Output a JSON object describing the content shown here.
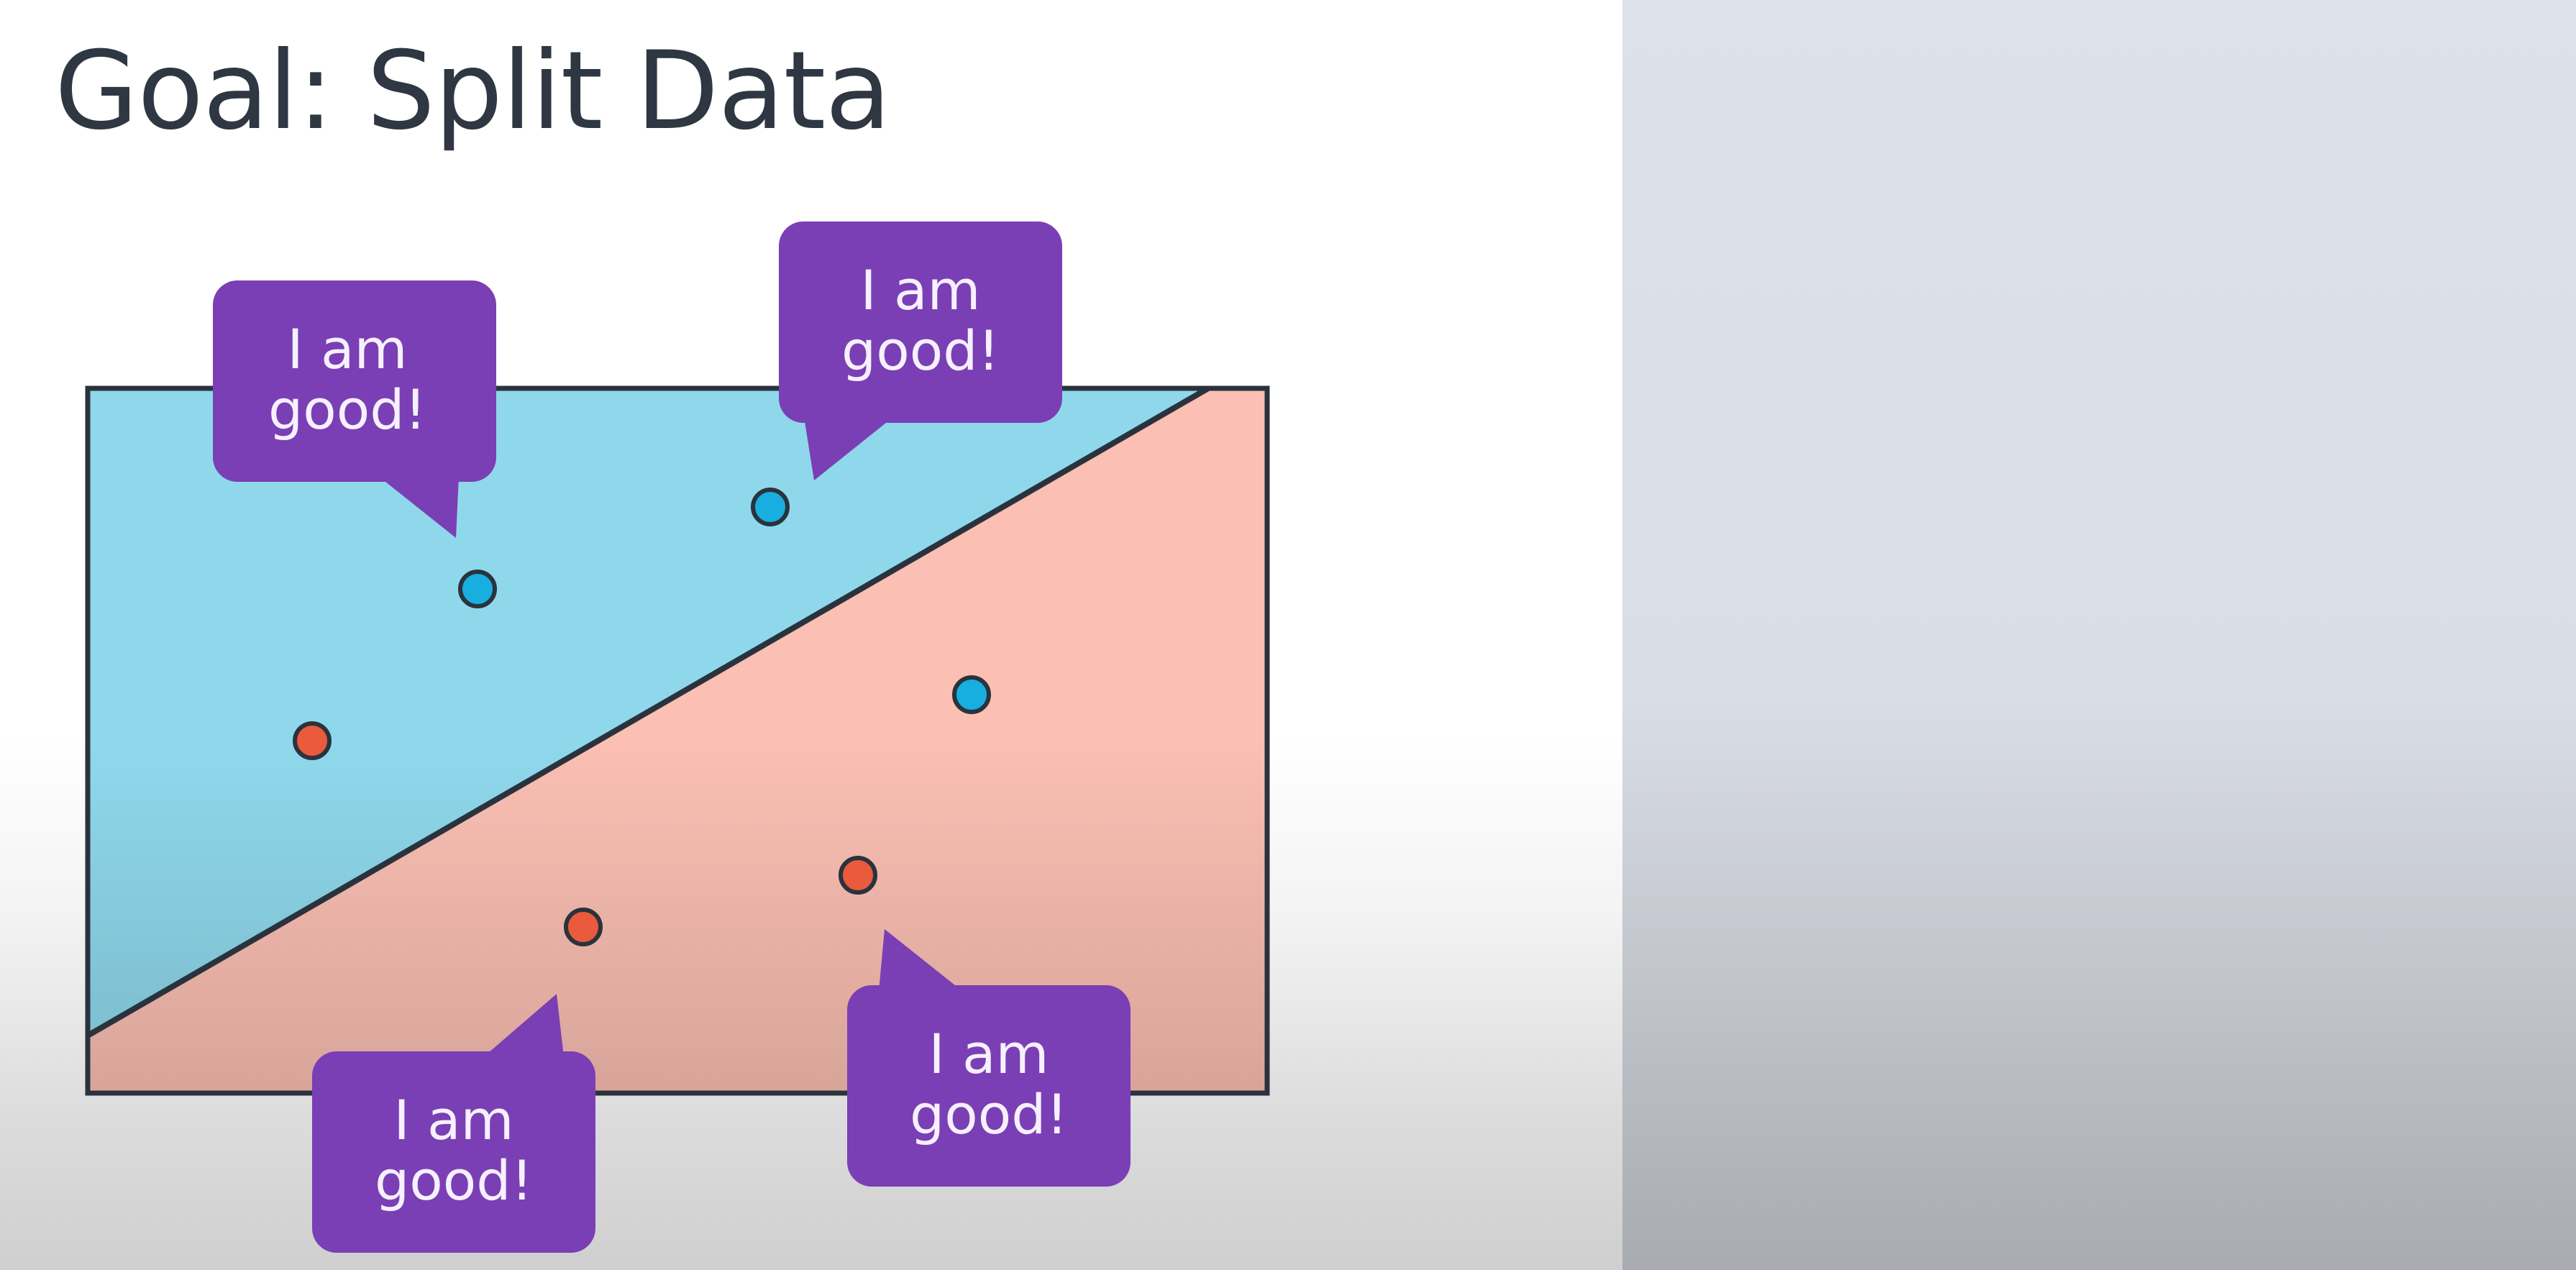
{
  "title": "Goal: Split Data",
  "bubbles": [
    {
      "line1": "I am",
      "line2": "good!"
    },
    {
      "line1": "I am",
      "line2": "good!"
    },
    {
      "line1": "I am",
      "line2": "good!"
    },
    {
      "line1": "I am",
      "line2": "good!"
    }
  ],
  "colors": {
    "region_top": "#8fd8ec",
    "region_bottom": "#fbbfb3",
    "point_blue": "#18aee0",
    "point_red": "#ea5a3c",
    "bubble": "#9b50e0",
    "outline": "#2a333d"
  },
  "points": [
    {
      "class": "blue"
    },
    {
      "class": "blue"
    },
    {
      "class": "blue"
    },
    {
      "class": "red"
    },
    {
      "class": "red"
    },
    {
      "class": "red"
    }
  ]
}
